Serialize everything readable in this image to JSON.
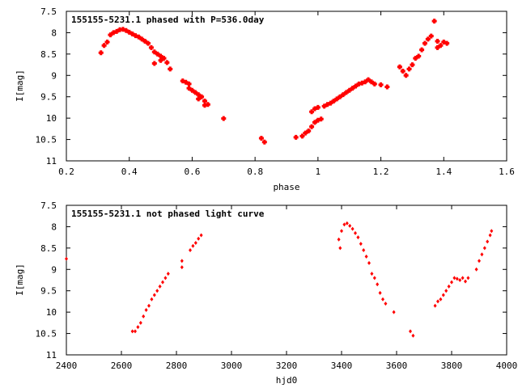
{
  "chart_data": [
    {
      "type": "scatter",
      "title": "155155-5231.1 phased with P=536.0day",
      "xlabel": "phase",
      "ylabel": "I[mag]",
      "xlim": [
        0.2,
        1.6
      ],
      "ylim": [
        11,
        7.5
      ],
      "y_inverted": true,
      "xticks": [
        "0.2",
        "0.4",
        "0.6",
        "0.8",
        "1",
        "1.2",
        "1.4",
        "1.6"
      ],
      "yticks": [
        "7.5",
        "8",
        "8.5",
        "9",
        "9.5",
        "10",
        "10.5",
        "11"
      ],
      "marker_color": "#ff0000",
      "grid": false,
      "points": [
        [
          0.31,
          8.47
        ],
        [
          0.32,
          8.3
        ],
        [
          0.33,
          8.22
        ],
        [
          0.34,
          8.05
        ],
        [
          0.35,
          8.0
        ],
        [
          0.36,
          7.97
        ],
        [
          0.37,
          7.93
        ],
        [
          0.38,
          7.92
        ],
        [
          0.39,
          7.95
        ],
        [
          0.4,
          7.99
        ],
        [
          0.41,
          8.03
        ],
        [
          0.42,
          8.07
        ],
        [
          0.43,
          8.1
        ],
        [
          0.44,
          8.15
        ],
        [
          0.45,
          8.2
        ],
        [
          0.46,
          8.25
        ],
        [
          0.47,
          8.35
        ],
        [
          0.48,
          8.45
        ],
        [
          0.49,
          8.5
        ],
        [
          0.5,
          8.55
        ],
        [
          0.48,
          8.72
        ],
        [
          0.5,
          8.65
        ],
        [
          0.51,
          8.6
        ],
        [
          0.52,
          8.7
        ],
        [
          0.53,
          8.85
        ],
        [
          0.57,
          9.13
        ],
        [
          0.58,
          9.16
        ],
        [
          0.59,
          9.2
        ],
        [
          0.59,
          9.3
        ],
        [
          0.6,
          9.35
        ],
        [
          0.61,
          9.4
        ],
        [
          0.62,
          9.45
        ],
        [
          0.63,
          9.5
        ],
        [
          0.64,
          9.6
        ],
        [
          0.65,
          9.68
        ],
        [
          0.62,
          9.55
        ],
        [
          0.64,
          9.7
        ],
        [
          0.7,
          10.01
        ],
        [
          0.82,
          10.47
        ],
        [
          0.83,
          10.56
        ],
        [
          0.93,
          10.45
        ],
        [
          0.95,
          10.42
        ],
        [
          0.96,
          10.35
        ],
        [
          0.97,
          10.3
        ],
        [
          0.98,
          10.2
        ],
        [
          0.99,
          10.1
        ],
        [
          1.0,
          10.05
        ],
        [
          1.01,
          10.02
        ],
        [
          0.98,
          9.85
        ],
        [
          0.99,
          9.78
        ],
        [
          1.0,
          9.75
        ],
        [
          1.02,
          9.72
        ],
        [
          1.03,
          9.68
        ],
        [
          1.04,
          9.65
        ],
        [
          1.05,
          9.6
        ],
        [
          1.06,
          9.55
        ],
        [
          1.07,
          9.5
        ],
        [
          1.08,
          9.45
        ],
        [
          1.09,
          9.4
        ],
        [
          1.1,
          9.35
        ],
        [
          1.11,
          9.3
        ],
        [
          1.12,
          9.25
        ],
        [
          1.13,
          9.2
        ],
        [
          1.14,
          9.18
        ],
        [
          1.15,
          9.15
        ],
        [
          1.16,
          9.1
        ],
        [
          1.17,
          9.15
        ],
        [
          1.18,
          9.2
        ],
        [
          1.2,
          9.22
        ],
        [
          1.22,
          9.27
        ],
        [
          1.26,
          8.8
        ],
        [
          1.27,
          8.9
        ],
        [
          1.28,
          9.0
        ],
        [
          1.29,
          8.85
        ],
        [
          1.3,
          8.75
        ],
        [
          1.31,
          8.6
        ],
        [
          1.32,
          8.55
        ],
        [
          1.33,
          8.4
        ],
        [
          1.34,
          8.25
        ],
        [
          1.35,
          8.15
        ],
        [
          1.36,
          8.08
        ],
        [
          1.37,
          7.73
        ],
        [
          1.38,
          8.2
        ],
        [
          1.38,
          8.35
        ],
        [
          1.39,
          8.3
        ],
        [
          1.4,
          8.22
        ],
        [
          1.41,
          8.25
        ]
      ]
    },
    {
      "type": "scatter",
      "title": "155155-5231.1 not phased light curve",
      "xlabel": "hjd0",
      "ylabel": "I[mag]",
      "xlim": [
        2400,
        4000
      ],
      "ylim": [
        11,
        7.5
      ],
      "y_inverted": true,
      "xticks": [
        "2400",
        "2600",
        "2800",
        "3000",
        "3200",
        "3400",
        "3600",
        "3800",
        "4000"
      ],
      "yticks": [
        "7.5",
        "8",
        "8.5",
        "9",
        "9.5",
        "10",
        "10.5",
        "11"
      ],
      "marker_color": "#ff0000",
      "grid": false,
      "points": [
        [
          2400,
          8.75
        ],
        [
          2640,
          10.45
        ],
        [
          2650,
          10.45
        ],
        [
          2660,
          10.35
        ],
        [
          2670,
          10.25
        ],
        [
          2680,
          10.1
        ],
        [
          2690,
          9.95
        ],
        [
          2700,
          9.85
        ],
        [
          2710,
          9.7
        ],
        [
          2720,
          9.6
        ],
        [
          2730,
          9.5
        ],
        [
          2740,
          9.4
        ],
        [
          2750,
          9.3
        ],
        [
          2760,
          9.2
        ],
        [
          2770,
          9.1
        ],
        [
          2820,
          8.8
        ],
        [
          2820,
          8.95
        ],
        [
          2850,
          8.55
        ],
        [
          2860,
          8.45
        ],
        [
          2870,
          8.38
        ],
        [
          2880,
          8.28
        ],
        [
          2890,
          8.2
        ],
        [
          3390,
          8.3
        ],
        [
          3395,
          8.5
        ],
        [
          3400,
          8.1
        ],
        [
          3410,
          7.95
        ],
        [
          3420,
          7.92
        ],
        [
          3430,
          7.98
        ],
        [
          3440,
          8.05
        ],
        [
          3450,
          8.15
        ],
        [
          3460,
          8.25
        ],
        [
          3470,
          8.4
        ],
        [
          3480,
          8.55
        ],
        [
          3490,
          8.7
        ],
        [
          3500,
          8.85
        ],
        [
          3510,
          9.1
        ],
        [
          3520,
          9.2
        ],
        [
          3530,
          9.35
        ],
        [
          3540,
          9.55
        ],
        [
          3550,
          9.7
        ],
        [
          3560,
          9.8
        ],
        [
          3590,
          10.0
        ],
        [
          3650,
          10.45
        ],
        [
          3660,
          10.55
        ],
        [
          3740,
          9.85
        ],
        [
          3750,
          9.75
        ],
        [
          3760,
          9.7
        ],
        [
          3770,
          9.6
        ],
        [
          3780,
          9.5
        ],
        [
          3790,
          9.4
        ],
        [
          3800,
          9.3
        ],
        [
          3810,
          9.2
        ],
        [
          3820,
          9.22
        ],
        [
          3830,
          9.25
        ],
        [
          3840,
          9.2
        ],
        [
          3850,
          9.28
        ],
        [
          3860,
          9.2
        ],
        [
          3890,
          9.0
        ],
        [
          3900,
          8.8
        ],
        [
          3910,
          8.65
        ],
        [
          3920,
          8.5
        ],
        [
          3930,
          8.35
        ],
        [
          3940,
          8.2
        ],
        [
          3945,
          8.1
        ]
      ]
    }
  ]
}
